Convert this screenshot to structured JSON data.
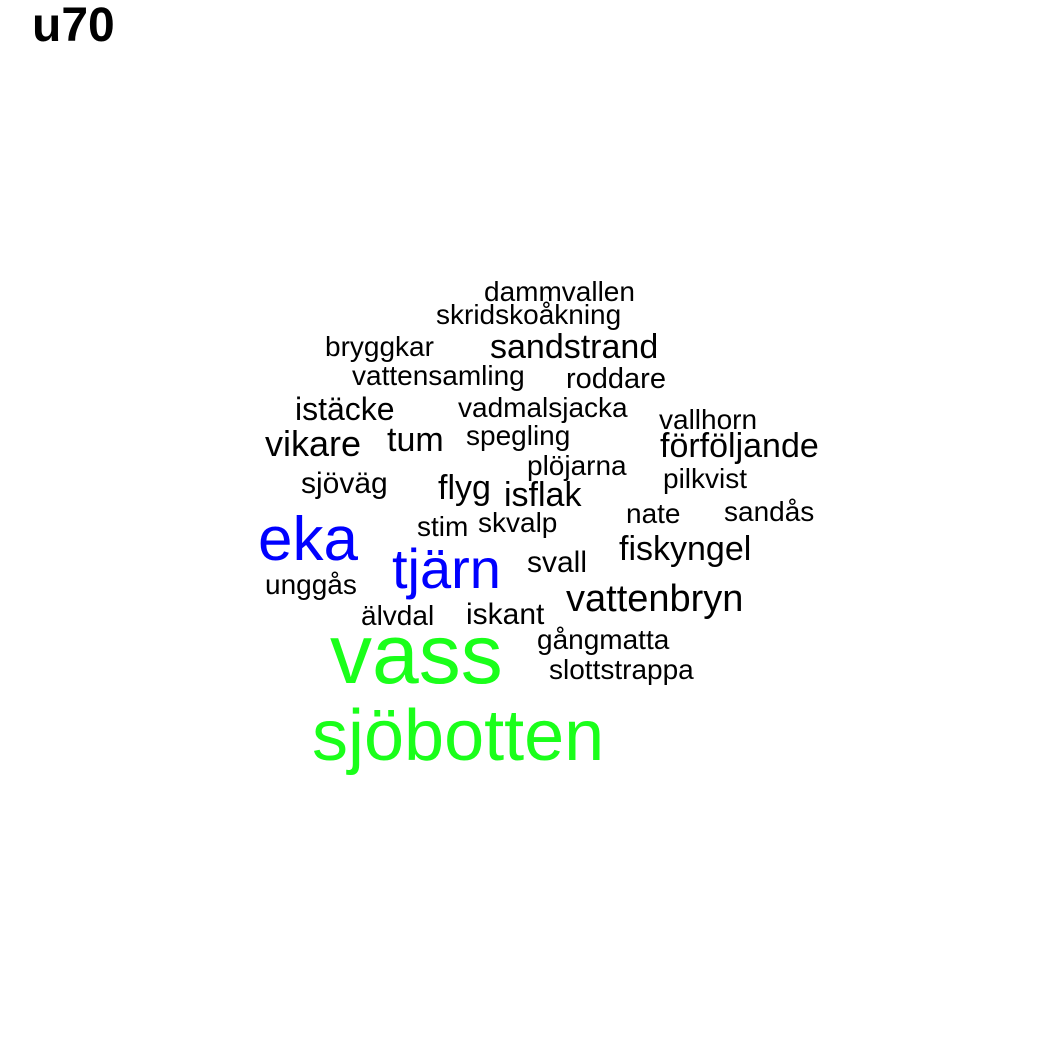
{
  "title": "u70",
  "colors": {
    "high": "#1aff1a",
    "mid": "#0000ff",
    "low": "#000000"
  },
  "words": [
    {
      "text": "vass",
      "level": "high"
    },
    {
      "text": "sjöbotten",
      "level": "high"
    },
    {
      "text": "eka",
      "level": "mid"
    },
    {
      "text": "tjärn",
      "level": "mid"
    },
    {
      "text": "dammvallen",
      "level": "low"
    },
    {
      "text": "skridskoåkning",
      "level": "low"
    },
    {
      "text": "bryggkar",
      "level": "low"
    },
    {
      "text": "sandstrand",
      "level": "low"
    },
    {
      "text": "vattensamling",
      "level": "low"
    },
    {
      "text": "roddare",
      "level": "low"
    },
    {
      "text": "istäcke",
      "level": "low"
    },
    {
      "text": "vadmalsjacka",
      "level": "low"
    },
    {
      "text": "vallhorn",
      "level": "low"
    },
    {
      "text": "vikare",
      "level": "low"
    },
    {
      "text": "tum",
      "level": "low"
    },
    {
      "text": "spegling",
      "level": "low"
    },
    {
      "text": "förföljande",
      "level": "low"
    },
    {
      "text": "plöjarna",
      "level": "low"
    },
    {
      "text": "sjöväg",
      "level": "low"
    },
    {
      "text": "pilkvist",
      "level": "low"
    },
    {
      "text": "flyg",
      "level": "low"
    },
    {
      "text": "isflak",
      "level": "low"
    },
    {
      "text": "nate",
      "level": "low"
    },
    {
      "text": "sandås",
      "level": "low"
    },
    {
      "text": "stim",
      "level": "low"
    },
    {
      "text": "skvalp",
      "level": "low"
    },
    {
      "text": "fiskyngel",
      "level": "low"
    },
    {
      "text": "svall",
      "level": "low"
    },
    {
      "text": "unggås",
      "level": "low"
    },
    {
      "text": "vattenbryn",
      "level": "low"
    },
    {
      "text": "älvdal",
      "level": "low"
    },
    {
      "text": "iskant",
      "level": "low"
    },
    {
      "text": "gångmatta",
      "level": "low"
    },
    {
      "text": "slottstrappa",
      "level": "low"
    }
  ]
}
